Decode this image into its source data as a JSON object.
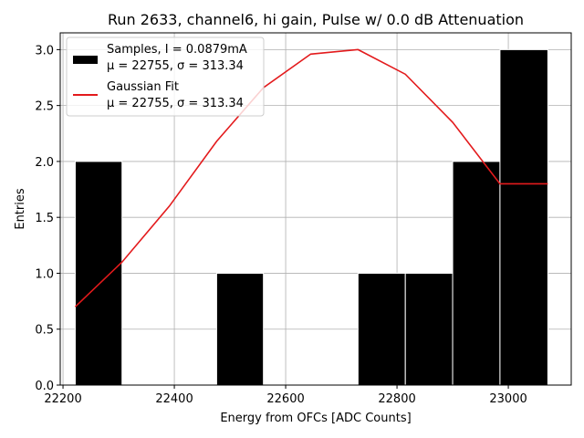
{
  "chart_data": {
    "type": "bar",
    "title": "Run 2633, channel6, hi gain, Pulse w/ 0.0 dB Attenuation",
    "xlabel": "Energy from OFCs [ADC Counts]",
    "ylabel": "Entries",
    "xlim": [
      22195,
      23113
    ],
    "ylim": [
      0,
      3.15
    ],
    "xticks": [
      22200,
      22400,
      22600,
      22800,
      23000
    ],
    "xtick_labels": [
      "22200",
      "22400",
      "22600",
      "22800",
      "23000"
    ],
    "yticks": [
      0.0,
      0.5,
      1.0,
      1.5,
      2.0,
      2.5,
      3.0
    ],
    "ytick_labels": [
      "0.0",
      "0.5",
      "1.0",
      "1.5",
      "2.0",
      "2.5",
      "3.0"
    ],
    "grid": true,
    "legend_position": "top-left",
    "bins": [
      {
        "x0": 22222,
        "x1": 22306,
        "count": 2
      },
      {
        "x0": 22306,
        "x1": 22391,
        "count": 0
      },
      {
        "x0": 22391,
        "x1": 22476,
        "count": 0
      },
      {
        "x0": 22476,
        "x1": 22560,
        "count": 1
      },
      {
        "x0": 22560,
        "x1": 22645,
        "count": 0
      },
      {
        "x0": 22645,
        "x1": 22730,
        "count": 0
      },
      {
        "x0": 22730,
        "x1": 22815,
        "count": 1
      },
      {
        "x0": 22815,
        "x1": 22900,
        "count": 1
      },
      {
        "x0": 22900,
        "x1": 22985,
        "count": 2
      },
      {
        "x0": 22985,
        "x1": 23071,
        "count": 3
      }
    ],
    "fit_curve": {
      "x": [
        22222,
        22306,
        22391,
        22476,
        22560,
        22645,
        22730,
        22815,
        22900,
        22985,
        23071
      ],
      "y": [
        0.7,
        1.1,
        1.6,
        2.18,
        2.66,
        2.96,
        3.0,
        2.78,
        2.35,
        1.8,
        1.8
      ]
    },
    "series": [
      {
        "name": "Samples, I = 0.0879mA",
        "stats": "μ = 22755, σ = 313.34",
        "color": "#000000",
        "kind": "histogram"
      },
      {
        "name": "Gaussian Fit",
        "stats": "μ = 22755, σ = 313.34",
        "color": "#e31a1c",
        "kind": "line"
      }
    ]
  }
}
